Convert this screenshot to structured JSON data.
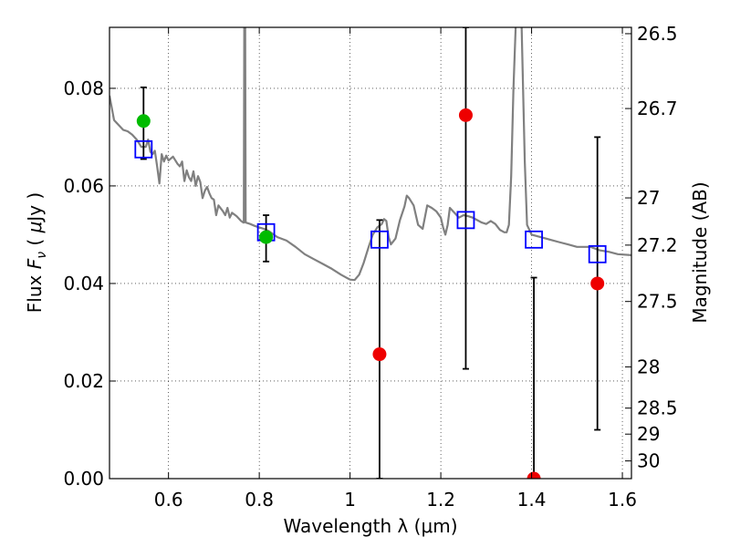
{
  "chart_data": {
    "type": "scatter",
    "xlabel": "Wavelength  λ (μm)",
    "ylabel_left": {
      "prefix": "Flux  ",
      "symbol_main": "F",
      "symbol_sub": "ν",
      "mid": "  (  ",
      "mu": "μ",
      "suffix": "Jy  )"
    },
    "ylabel_right": "Magnitude (AB)",
    "xlim": [
      0.47,
      1.62
    ],
    "ylim": [
      0.0,
      0.0925
    ],
    "grid": true,
    "x_ticks": [
      {
        "value": 0.6,
        "label": "0.6"
      },
      {
        "value": 0.8,
        "label": "0.8"
      },
      {
        "value": 1.0,
        "label": "1"
      },
      {
        "value": 1.2,
        "label": "1.2"
      },
      {
        "value": 1.4,
        "label": "1.4"
      },
      {
        "value": 1.6,
        "label": "1.6"
      }
    ],
    "y_ticks": [
      {
        "value": 0.0,
        "label": "0.00"
      },
      {
        "value": 0.02,
        "label": "0.02"
      },
      {
        "value": 0.04,
        "label": "0.04"
      },
      {
        "value": 0.06,
        "label": "0.06"
      },
      {
        "value": 0.08,
        "label": "0.08"
      }
    ],
    "magnitude_ticks": [
      {
        "mag": 26.5,
        "label": "26.5"
      },
      {
        "mag": 26.7,
        "label": "26.7"
      },
      {
        "mag": 27.0,
        "label": "27"
      },
      {
        "mag": 27.2,
        "label": "27.2"
      },
      {
        "mag": 27.5,
        "label": "27.5"
      },
      {
        "mag": 28.0,
        "label": "28"
      },
      {
        "mag": 28.5,
        "label": "28.5"
      },
      {
        "mag": 29.0,
        "label": "29"
      },
      {
        "mag": 30.0,
        "label": "30"
      }
    ],
    "model_color": "#808080",
    "model_spectrum": [
      [
        0.47,
        0.0785
      ],
      [
        0.48,
        0.0735
      ],
      [
        0.49,
        0.0725
      ],
      [
        0.5,
        0.0715
      ],
      [
        0.51,
        0.0712
      ],
      [
        0.52,
        0.0705
      ],
      [
        0.53,
        0.0695
      ],
      [
        0.54,
        0.068
      ],
      [
        0.55,
        0.068
      ],
      [
        0.555,
        0.0695
      ],
      [
        0.56,
        0.067
      ],
      [
        0.565,
        0.0665
      ],
      [
        0.57,
        0.0672
      ],
      [
        0.575,
        0.064
      ],
      [
        0.58,
        0.0605
      ],
      [
        0.585,
        0.0665
      ],
      [
        0.59,
        0.065
      ],
      [
        0.595,
        0.0662
      ],
      [
        0.6,
        0.0652
      ],
      [
        0.61,
        0.066
      ],
      [
        0.62,
        0.0645
      ],
      [
        0.625,
        0.064
      ],
      [
        0.63,
        0.065
      ],
      [
        0.635,
        0.061
      ],
      [
        0.64,
        0.0632
      ],
      [
        0.645,
        0.0618
      ],
      [
        0.65,
        0.061
      ],
      [
        0.655,
        0.063
      ],
      [
        0.66,
        0.06
      ],
      [
        0.665,
        0.062
      ],
      [
        0.67,
        0.0608
      ],
      [
        0.675,
        0.0575
      ],
      [
        0.68,
        0.059
      ],
      [
        0.685,
        0.0598
      ],
      [
        0.69,
        0.0585
      ],
      [
        0.695,
        0.0575
      ],
      [
        0.7,
        0.0572
      ],
      [
        0.705,
        0.054
      ],
      [
        0.71,
        0.056
      ],
      [
        0.72,
        0.0548
      ],
      [
        0.725,
        0.054
      ],
      [
        0.73,
        0.0555
      ],
      [
        0.735,
        0.0535
      ],
      [
        0.74,
        0.0545
      ],
      [
        0.75,
        0.0538
      ],
      [
        0.76,
        0.0528
      ],
      [
        0.765,
        0.0525
      ],
      [
        0.766,
        0.0525
      ],
      [
        0.767,
        0.093
      ],
      [
        0.769,
        0.093
      ],
      [
        0.77,
        0.0525
      ],
      [
        0.78,
        0.0522
      ],
      [
        0.79,
        0.0518
      ],
      [
        0.8,
        0.0515
      ],
      [
        0.81,
        0.0512
      ],
      [
        0.82,
        0.0508
      ],
      [
        0.84,
        0.0495
      ],
      [
        0.86,
        0.0488
      ],
      [
        0.88,
        0.0475
      ],
      [
        0.9,
        0.046
      ],
      [
        0.92,
        0.045
      ],
      [
        0.94,
        0.044
      ],
      [
        0.96,
        0.043
      ],
      [
        0.98,
        0.0418
      ],
      [
        1.0,
        0.0408
      ],
      [
        1.01,
        0.0407
      ],
      [
        1.02,
        0.0418
      ],
      [
        1.03,
        0.0442
      ],
      [
        1.04,
        0.0472
      ],
      [
        1.05,
        0.05
      ],
      [
        1.06,
        0.0515
      ],
      [
        1.07,
        0.0522
      ],
      [
        1.075,
        0.0532
      ],
      [
        1.08,
        0.0528
      ],
      [
        1.085,
        0.0495
      ],
      [
        1.09,
        0.048
      ],
      [
        1.1,
        0.0492
      ],
      [
        1.11,
        0.053
      ],
      [
        1.12,
        0.0558
      ],
      [
        1.125,
        0.058
      ],
      [
        1.13,
        0.0575
      ],
      [
        1.14,
        0.056
      ],
      [
        1.15,
        0.052
      ],
      [
        1.16,
        0.0512
      ],
      [
        1.17,
        0.056
      ],
      [
        1.18,
        0.0555
      ],
      [
        1.19,
        0.0548
      ],
      [
        1.2,
        0.0535
      ],
      [
        1.205,
        0.0515
      ],
      [
        1.21,
        0.05
      ],
      [
        1.215,
        0.052
      ],
      [
        1.22,
        0.0555
      ],
      [
        1.23,
        0.0545
      ],
      [
        1.24,
        0.0535
      ],
      [
        1.25,
        0.054
      ],
      [
        1.26,
        0.0538
      ],
      [
        1.27,
        0.0535
      ],
      [
        1.28,
        0.053
      ],
      [
        1.29,
        0.0525
      ],
      [
        1.3,
        0.0522
      ],
      [
        1.31,
        0.0528
      ],
      [
        1.32,
        0.0522
      ],
      [
        1.33,
        0.051
      ],
      [
        1.34,
        0.0505
      ],
      [
        1.345,
        0.0505
      ],
      [
        1.35,
        0.052
      ],
      [
        1.355,
        0.062
      ],
      [
        1.36,
        0.08
      ],
      [
        1.365,
        0.093
      ],
      [
        1.378,
        0.093
      ],
      [
        1.385,
        0.065
      ],
      [
        1.39,
        0.052
      ],
      [
        1.4,
        0.05
      ],
      [
        1.42,
        0.0495
      ],
      [
        1.44,
        0.049
      ],
      [
        1.46,
        0.0485
      ],
      [
        1.48,
        0.048
      ],
      [
        1.5,
        0.0475
      ],
      [
        1.53,
        0.0475
      ],
      [
        1.55,
        0.0468
      ],
      [
        1.57,
        0.0465
      ],
      [
        1.59,
        0.046
      ],
      [
        1.62,
        0.0458
      ]
    ],
    "series": [
      {
        "name": "model_photometry",
        "marker": "square",
        "color": "#0000ff",
        "points": [
          {
            "x": 0.545,
            "y": 0.0675
          },
          {
            "x": 0.815,
            "y": 0.0505
          },
          {
            "x": 1.065,
            "y": 0.049
          },
          {
            "x": 1.255,
            "y": 0.053
          },
          {
            "x": 1.405,
            "y": 0.049
          },
          {
            "x": 1.545,
            "y": 0.046
          }
        ]
      },
      {
        "name": "detections",
        "marker": "circle",
        "color": "#00bb00",
        "points": [
          {
            "x": 0.545,
            "y": 0.0733,
            "err_low": 0.0655,
            "err_high": 0.0802
          },
          {
            "x": 0.815,
            "y": 0.0495,
            "err_low": 0.0445,
            "err_high": 0.054
          }
        ]
      },
      {
        "name": "low_significance",
        "marker": "circle",
        "color": "#ee0000",
        "points": [
          {
            "x": 1.065,
            "y": 0.0255,
            "err_low": 0.0,
            "err_high": 0.053
          },
          {
            "x": 1.255,
            "y": 0.0745,
            "err_low": 0.0225,
            "err_high": 0.0925
          },
          {
            "x": 1.405,
            "y": 0.0,
            "err_low": 0.0,
            "err_high": 0.0412
          },
          {
            "x": 1.545,
            "y": 0.04,
            "err_low": 0.01,
            "err_high": 0.07
          }
        ]
      }
    ]
  }
}
